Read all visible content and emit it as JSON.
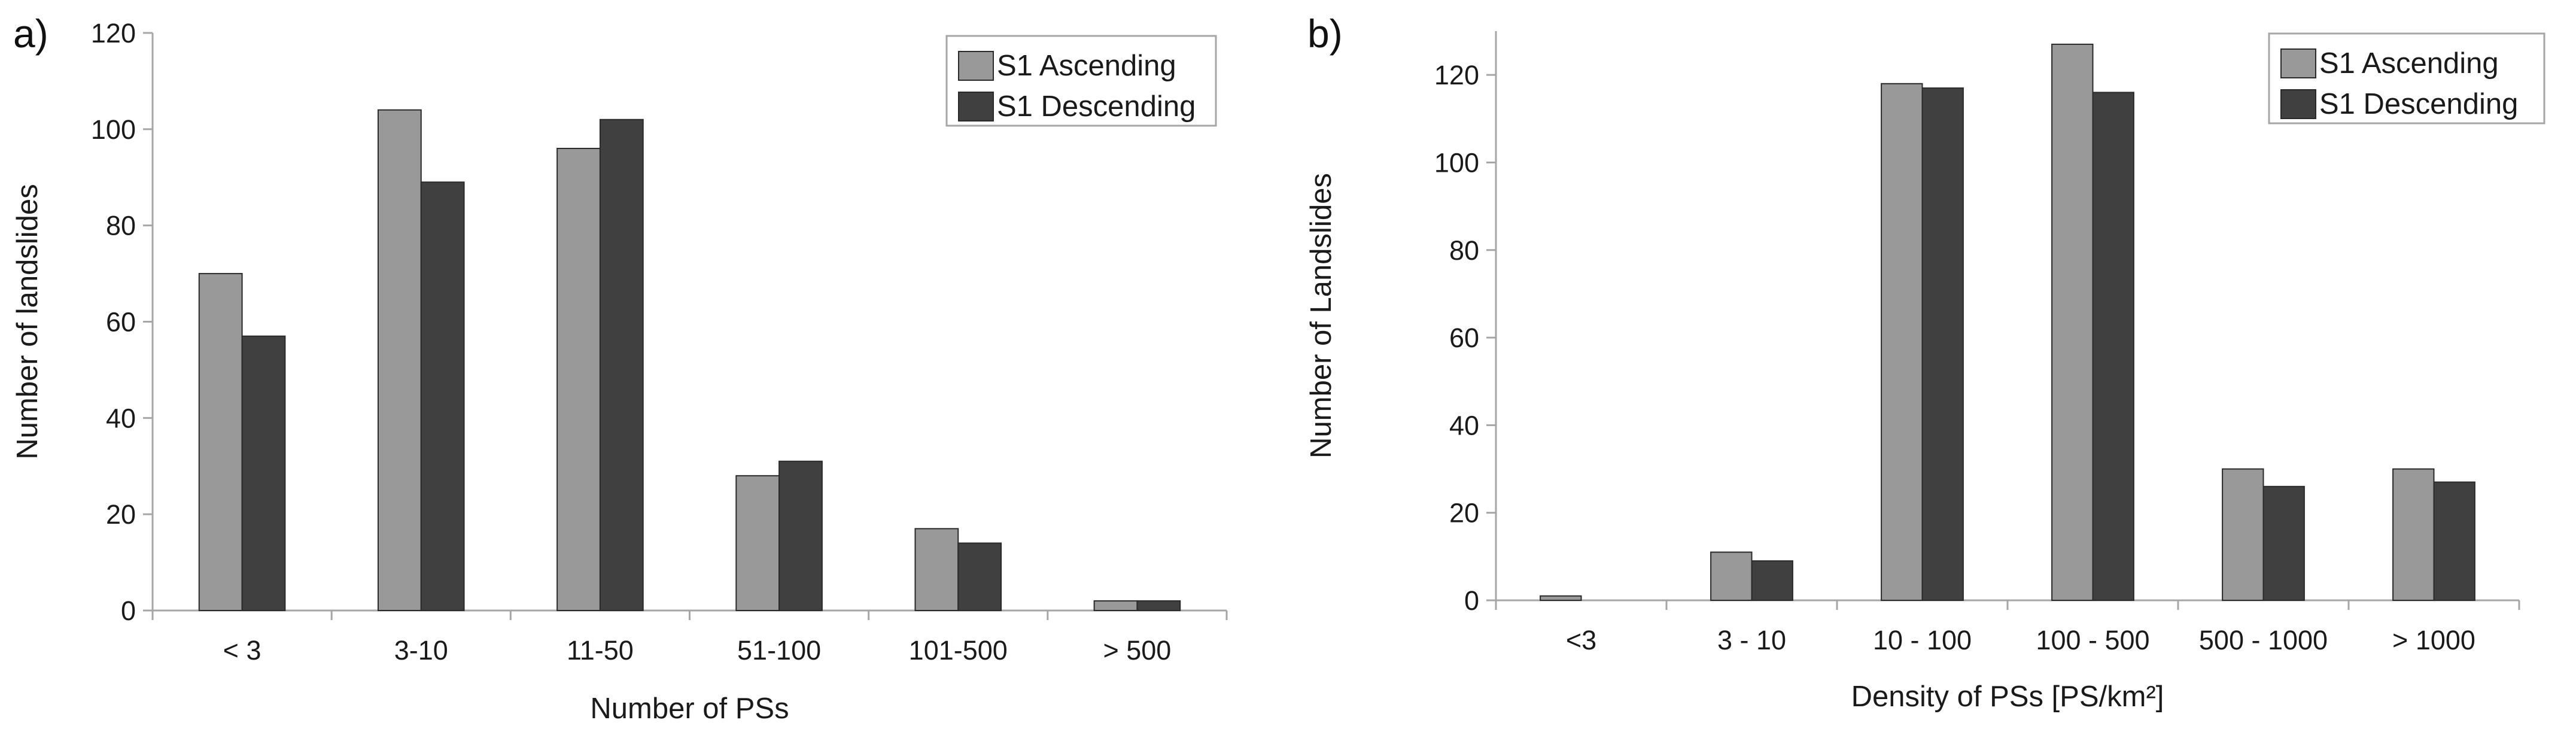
{
  "colors": {
    "ascending": "#999999",
    "descending": "#404040",
    "axis": "#a6a6a6",
    "bar_edge": "#2a2a2a"
  },
  "chart_data": [
    {
      "panel_label": "a)",
      "type": "bar",
      "title": "",
      "xlabel": "Number of PSs",
      "ylabel": "Number of landslides",
      "categories": [
        "< 3",
        "3-10",
        "11-50",
        "51-100",
        "101-500",
        "> 500"
      ],
      "series": [
        {
          "name": "S1 Ascending",
          "values": [
            70,
            104,
            96,
            28,
            17,
            2
          ]
        },
        {
          "name": "S1 Descending",
          "values": [
            57,
            89,
            102,
            31,
            14,
            2
          ]
        }
      ],
      "ylim": [
        0,
        120
      ],
      "yticks": [
        0,
        20,
        40,
        60,
        80,
        100,
        120
      ],
      "grid": false,
      "legend_position": "top-right"
    },
    {
      "panel_label": "b)",
      "type": "bar",
      "title": "",
      "xlabel": "Density of PSs [PS/km²]",
      "ylabel": "Number of Landslides",
      "categories": [
        "<3",
        "3 - 10",
        "10 - 100",
        "100 - 500",
        "500 - 1000",
        "> 1000"
      ],
      "series": [
        {
          "name": "S1 Ascending",
          "values": [
            1,
            11,
            118,
            127,
            30,
            30
          ]
        },
        {
          "name": "S1 Descending",
          "values": [
            0,
            9,
            117,
            116,
            26,
            27
          ]
        }
      ],
      "ylim": [
        0,
        130
      ],
      "yticks": [
        0,
        20,
        40,
        60,
        80,
        100,
        120
      ],
      "grid": false,
      "legend_position": "top-right"
    }
  ]
}
